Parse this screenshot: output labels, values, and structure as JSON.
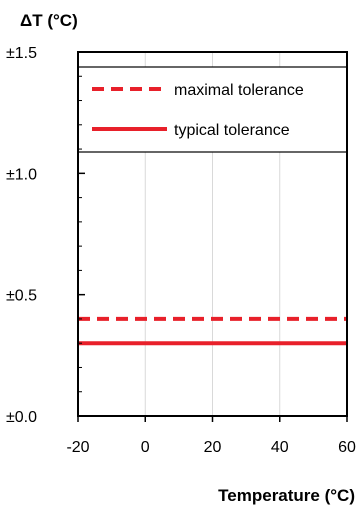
{
  "chart_data": {
    "type": "line",
    "ylabel": "ΔT (°C)",
    "xlabel": "Temperature (°C)",
    "xlim": [
      -20,
      60
    ],
    "ylim": [
      0,
      1.5
    ],
    "x_ticks": [
      -20,
      0,
      20,
      40,
      60
    ],
    "x_tick_labels": [
      "-20",
      "0",
      "20",
      "40",
      "60"
    ],
    "y_ticks": [
      0,
      0.5,
      1.0,
      1.5
    ],
    "y_tick_labels": [
      "±0.0",
      "±0.5",
      "±1.0",
      "±1.5"
    ],
    "grid": "vertical",
    "legend_position": "top",
    "series": [
      {
        "name": "maximal tolerance",
        "style": "dashed",
        "color": "#e8202a",
        "x": [
          -20,
          60
        ],
        "values": [
          0.4,
          0.4
        ]
      },
      {
        "name": "typical tolerance",
        "style": "solid",
        "color": "#e8202a",
        "x": [
          -20,
          60
        ],
        "values": [
          0.3,
          0.3
        ]
      }
    ]
  }
}
